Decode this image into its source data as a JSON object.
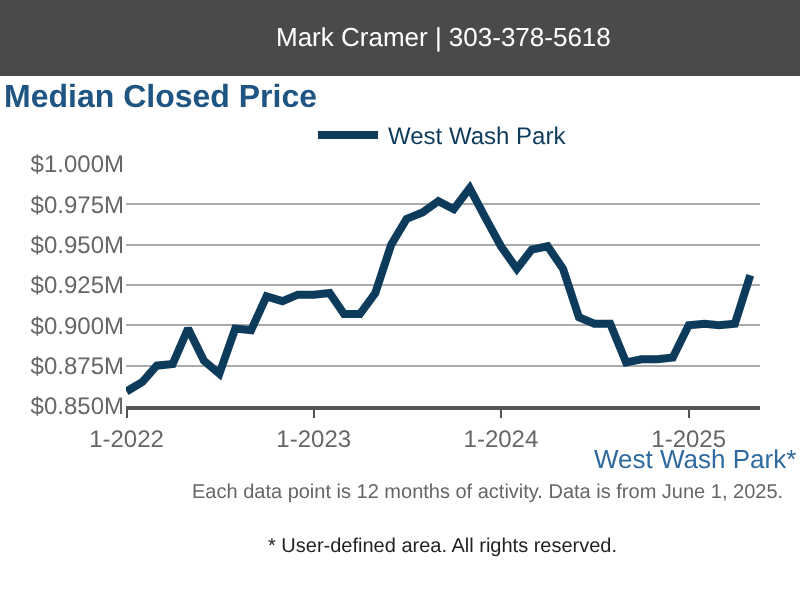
{
  "chart_data": {
    "type": "line",
    "title": "Median Closed Price",
    "annotations": [
      "Mark Cramer | 303-378-5618",
      "West Wash Park*",
      "Each data point is 12 months of activity. Data is from June 1, 2025.",
      "* User-defined area. All rights reserved."
    ],
    "x": [
      "2022-01",
      "2022-02",
      "2022-03",
      "2022-04",
      "2022-05",
      "2022-06",
      "2022-07",
      "2022-08",
      "2022-09",
      "2022-10",
      "2022-11",
      "2022-12",
      "2023-01",
      "2023-02",
      "2023-03",
      "2023-04",
      "2023-05",
      "2023-06",
      "2023-07",
      "2023-08",
      "2023-09",
      "2023-10",
      "2023-11",
      "2023-12",
      "2024-01",
      "2024-02",
      "2024-03",
      "2024-04",
      "2024-05",
      "2024-06",
      "2024-07",
      "2024-08",
      "2024-09",
      "2024-10",
      "2024-11",
      "2024-12",
      "2025-01",
      "2025-02",
      "2025-03",
      "2025-04",
      "2025-05"
    ],
    "series": [
      {
        "name": "West Wash Park",
        "color": "#0d3b5c",
        "values": [
          0.859,
          0.865,
          0.875,
          0.876,
          0.898,
          0.878,
          0.87,
          0.898,
          0.897,
          0.918,
          0.915,
          0.919,
          0.919,
          0.92,
          0.907,
          0.907,
          0.92,
          0.95,
          0.966,
          0.97,
          0.977,
          0.972,
          0.985,
          0.967,
          0.949,
          0.935,
          0.947,
          0.949,
          0.935,
          0.905,
          0.901,
          0.901,
          0.877,
          0.879,
          0.879,
          0.88,
          0.9,
          0.901,
          0.9,
          0.901,
          0.931
        ]
      }
    ],
    "xlim": [
      "2021-12-31",
      "2025-05-20"
    ],
    "xticks": [
      {
        "value": "2022-01-01",
        "label": "1-2022"
      },
      {
        "value": "2023-01-01",
        "label": "1-2023"
      },
      {
        "value": "2024-01-01",
        "label": "1-2024"
      },
      {
        "value": "2025-01-01",
        "label": "1-2025"
      }
    ],
    "ylim": [
      0.85,
      1.0
    ],
    "yticks": [
      {
        "value": 0.85,
        "label": "$0.850M"
      },
      {
        "value": 0.875,
        "label": "$0.875M"
      },
      {
        "value": 0.9,
        "label": "$0.900M"
      },
      {
        "value": 0.925,
        "label": "$0.925M"
      },
      {
        "value": 0.95,
        "label": "$0.950M"
      },
      {
        "value": 0.975,
        "label": "$0.975M"
      },
      {
        "value": 1.0,
        "label": "$1.000M"
      }
    ],
    "grid": "y",
    "legend": "top",
    "marker": "none",
    "line_style": "solid"
  }
}
